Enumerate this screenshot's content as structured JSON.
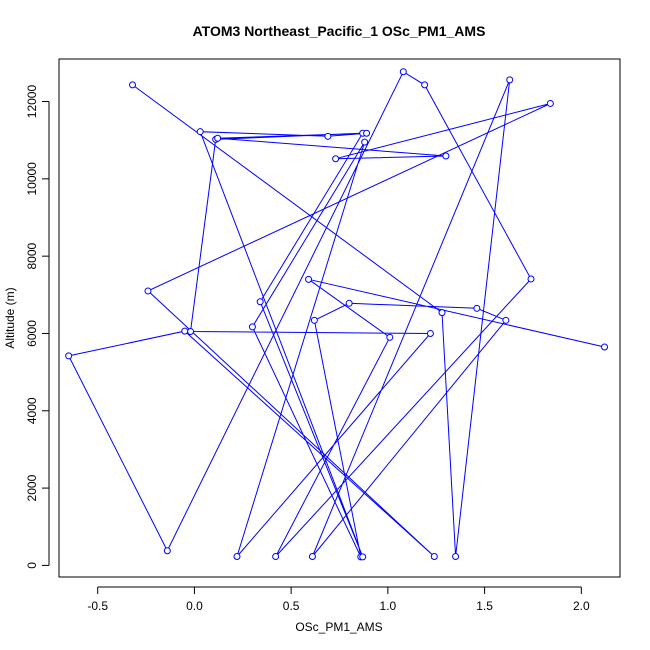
{
  "chart_data": {
    "type": "line",
    "title": "ATOM3 Northeast_Pacific_1 OSc_PM1_AMS",
    "xlabel": "OSc_PM1_AMS",
    "ylabel": "Altitude (m)",
    "xlim": [
      -0.7,
      2.2
    ],
    "ylim": [
      -300,
      13100
    ],
    "xticks": [
      -0.5,
      0.0,
      0.5,
      1.0,
      1.5,
      2.0
    ],
    "xtick_labels": [
      "-0.5",
      "0.0",
      "0.5",
      "1.0",
      "1.5",
      "2.0"
    ],
    "yticks": [
      0,
      2000,
      4000,
      6000,
      8000,
      10000,
      12000
    ],
    "ytick_labels": [
      "0",
      "2000",
      "4000",
      "6000",
      "8000",
      "10000",
      "12000"
    ],
    "grid": false,
    "line_color": "#0000ff",
    "marker": "open-circle",
    "series": [
      {
        "x": [
          -0.32,
          1.28,
          1.35,
          1.63,
          0.61,
          1.61,
          1.46,
          0.8,
          0.62,
          0.86,
          0.3,
          0.88,
          0.22,
          1.22,
          -0.02,
          0.11,
          0.87,
          0.34,
          0.87,
          0.03,
          0.69,
          0.89,
          0.12,
          1.3,
          0.73,
          1.84,
          -0.24,
          1.24,
          -0.05,
          -0.65,
          -0.14,
          1.08,
          1.19,
          1.74,
          0.42,
          1.01,
          0.59,
          2.12
        ],
        "y": [
          12430,
          6540,
          230,
          12560,
          230,
          6340,
          6650,
          6780,
          6340,
          220,
          6170,
          10950,
          230,
          6000,
          6050,
          11020,
          11180,
          6820,
          220,
          11220,
          11100,
          11180,
          11050,
          10590,
          10520,
          11950,
          7100,
          230,
          6060,
          5420,
          380,
          12770,
          12430,
          7410,
          230,
          5900,
          7400,
          5650
        ]
      }
    ]
  }
}
